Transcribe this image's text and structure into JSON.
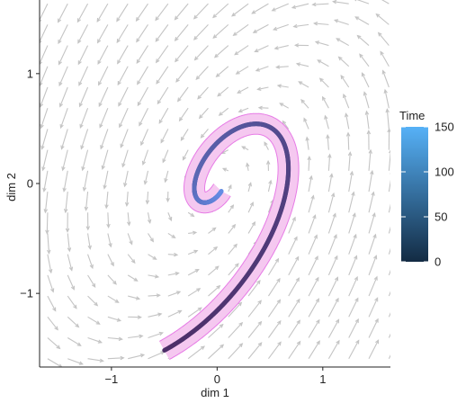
{
  "chart_data": {
    "type": "vector-field-trajectory",
    "xlabel": "dim 1",
    "ylabel": "dim 2",
    "xlim": [
      -1.68,
      1.64
    ],
    "ylim": [
      -1.67,
      1.67
    ],
    "xticks": [
      -1,
      0,
      1
    ],
    "yticks": [
      -1,
      0,
      1
    ],
    "tick_labels": {
      "x": [
        "−1",
        "0",
        "1"
      ],
      "y": [
        "−1",
        "0",
        "1"
      ]
    },
    "vector_field": {
      "grid_step": 0.19,
      "dynamics": {
        "a": 0.2,
        "b": -1.0,
        "c": 1.4,
        "d": -0.95
      },
      "arrow_color": "#c4c4c4"
    },
    "trajectory": {
      "time_range": [
        0,
        150
      ],
      "line_width_note": "thick path colored by Time",
      "band_color": "#f5c8f0",
      "band_edge_color": "#e77be6"
    },
    "legend": {
      "title": "Time",
      "ticks": [
        0,
        50,
        100,
        150
      ],
      "tick_labels": [
        "0",
        "50",
        "100",
        "150"
      ],
      "range": [
        0,
        150
      ],
      "gradient": [
        "#132b43",
        "#56b1f7"
      ],
      "placement": "right"
    }
  }
}
